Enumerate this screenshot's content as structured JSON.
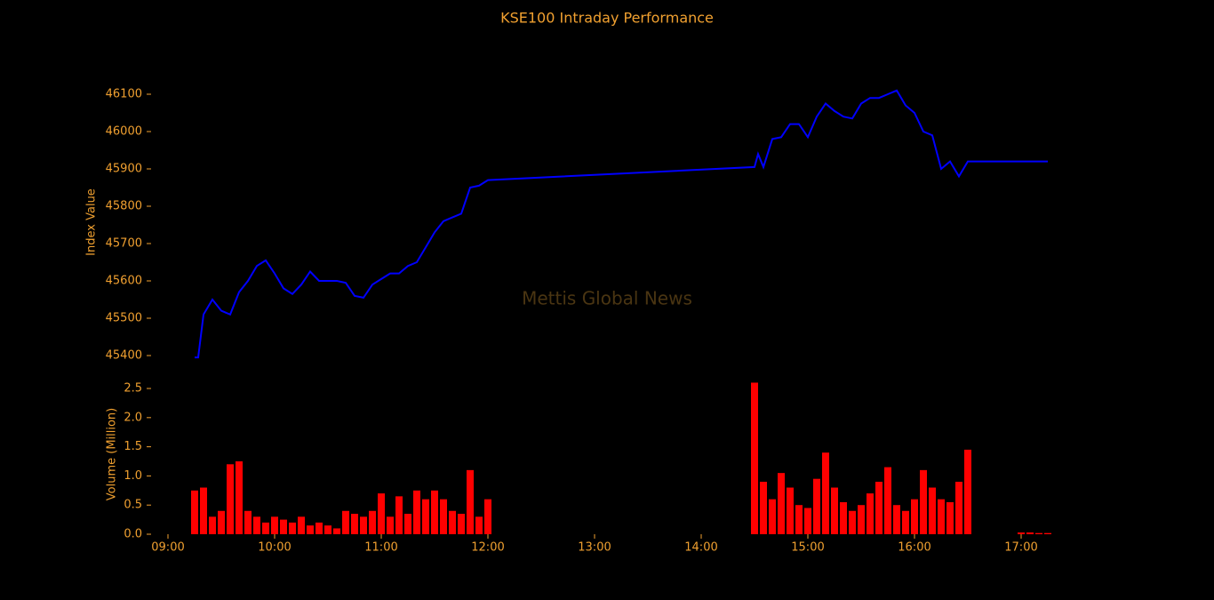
{
  "chart_data": [
    {
      "type": "line",
      "title": "KSE100 Intraday Performance",
      "ylabel": "Index Value",
      "annotation": "Mettis Global News",
      "xlim": [
        "08:50",
        "17:16"
      ],
      "ylim": [
        45370,
        46130
      ],
      "yticks": [
        45400,
        45500,
        45600,
        45700,
        45800,
        45900,
        46000,
        46100
      ],
      "x": [
        "09:15",
        "09:17",
        "09:20",
        "09:25",
        "09:30",
        "09:35",
        "09:40",
        "09:45",
        "09:50",
        "09:55",
        "10:00",
        "10:05",
        "10:10",
        "10:15",
        "10:20",
        "10:25",
        "10:30",
        "10:35",
        "10:40",
        "10:45",
        "10:50",
        "10:55",
        "11:00",
        "11:05",
        "11:10",
        "11:15",
        "11:20",
        "11:25",
        "11:30",
        "11:35",
        "11:40",
        "11:45",
        "11:50",
        "11:55",
        "12:00",
        "14:30",
        "14:32",
        "14:35",
        "14:40",
        "14:45",
        "14:50",
        "14:55",
        "15:00",
        "15:05",
        "15:10",
        "15:15",
        "15:20",
        "15:25",
        "15:30",
        "15:35",
        "15:40",
        "15:45",
        "15:50",
        "15:55",
        "16:00",
        "16:05",
        "16:10",
        "16:15",
        "16:20",
        "16:25",
        "16:30",
        "17:15"
      ],
      "series": [
        {
          "name": "KSE100",
          "color": "#0000ff",
          "values": [
            45395,
            45395,
            45510,
            45550,
            45520,
            45510,
            45570,
            45600,
            45640,
            45655,
            45620,
            45580,
            45565,
            45590,
            45625,
            45600,
            45600,
            45600,
            45595,
            45560,
            45555,
            45590,
            45605,
            45620,
            45620,
            45640,
            45650,
            45690,
            45730,
            45760,
            45770,
            45780,
            45850,
            45855,
            45870,
            45905,
            45940,
            45905,
            45980,
            45985,
            46020,
            46020,
            45985,
            46040,
            46075,
            46055,
            46040,
            46035,
            46075,
            46090,
            46090,
            46100,
            46110,
            46070,
            46050,
            46000,
            45990,
            45900,
            45920,
            45880,
            45920,
            45920
          ]
        }
      ]
    },
    {
      "type": "bar",
      "ylabel": "Volume (Million)",
      "color": "#ff0000",
      "xlim": [
        "08:50",
        "17:16"
      ],
      "ylim": [
        0,
        2.65
      ],
      "xticks": [
        "09:00",
        "10:00",
        "11:00",
        "12:00",
        "13:00",
        "14:00",
        "15:00",
        "16:00",
        "17:00"
      ],
      "yticks": [
        {
          "value": 0,
          "label": "0.0"
        },
        0.5,
        {
          "value": 1,
          "label": "1.0"
        },
        1.5,
        {
          "value": 2,
          "label": "2.0"
        },
        2.5
      ],
      "x": [
        "09:15",
        "09:20",
        "09:25",
        "09:30",
        "09:35",
        "09:40",
        "09:45",
        "09:50",
        "09:55",
        "10:00",
        "10:05",
        "10:10",
        "10:15",
        "10:20",
        "10:25",
        "10:30",
        "10:35",
        "10:40",
        "10:45",
        "10:50",
        "10:55",
        "11:00",
        "11:05",
        "11:10",
        "11:15",
        "11:20",
        "11:25",
        "11:30",
        "11:35",
        "11:40",
        "11:45",
        "11:50",
        "11:55",
        "12:00",
        "14:30",
        "14:35",
        "14:40",
        "14:45",
        "14:50",
        "14:55",
        "15:00",
        "15:05",
        "15:10",
        "15:15",
        "15:20",
        "15:25",
        "15:30",
        "15:35",
        "15:40",
        "15:45",
        "15:50",
        "15:55",
        "16:00",
        "16:05",
        "16:10",
        "16:15",
        "16:20",
        "16:25",
        "16:30",
        "17:00",
        "17:05",
        "17:10",
        "17:15"
      ],
      "values": [
        0.75,
        0.8,
        0.3,
        0.4,
        1.2,
        1.25,
        0.4,
        0.3,
        0.2,
        0.3,
        0.25,
        0.2,
        0.3,
        0.15,
        0.2,
        0.15,
        0.1,
        0.4,
        0.35,
        0.3,
        0.4,
        0.7,
        0.3,
        0.65,
        0.35,
        0.75,
        0.6,
        0.75,
        0.6,
        0.4,
        0.35,
        1.1,
        0.3,
        0.6,
        2.6,
        0.9,
        0.6,
        1.05,
        0.8,
        0.5,
        0.45,
        0.95,
        1.4,
        0.8,
        0.55,
        0.4,
        0.5,
        0.7,
        0.9,
        1.15,
        0.5,
        0.4,
        0.6,
        1.1,
        0.8,
        0.6,
        0.55,
        0.9,
        1.45,
        0.03,
        0.03,
        0.02,
        0.02
      ]
    }
  ]
}
